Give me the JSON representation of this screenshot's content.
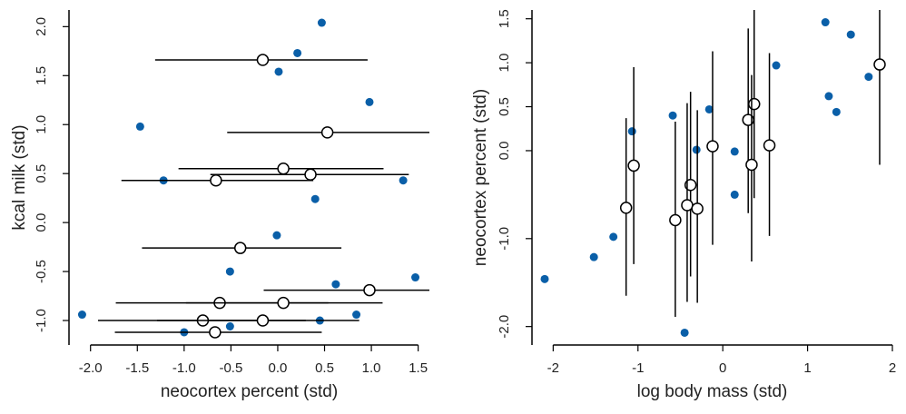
{
  "colors": {
    "observed": "#0a5fa8",
    "estimate": "#000000"
  },
  "chart_data": [
    {
      "type": "scatter",
      "xlabel": "neocortex percent (std)",
      "ylabel": "kcal milk (std)",
      "xlim": [
        -2.23,
        1.62
      ],
      "ylim": [
        -1.25,
        2.17
      ],
      "xticks": [
        "-2.0",
        "-1.5",
        "-1.0",
        "-0.5",
        "0.0",
        "0.5",
        "1.0",
        "1.5"
      ],
      "yticks": [
        "-1.0",
        "-0.5",
        "0.0",
        "0.5",
        "1.0",
        "1.5",
        "2.0"
      ],
      "grid": false,
      "observed": [
        [
          0.47,
          2.04
        ],
        [
          0.21,
          1.73
        ],
        [
          0.01,
          1.54
        ],
        [
          0.98,
          1.23
        ],
        [
          -1.47,
          0.98
        ],
        [
          -1.22,
          0.43
        ],
        [
          1.34,
          0.43
        ],
        [
          0.4,
          0.24
        ],
        [
          -0.01,
          -0.13
        ],
        [
          -0.51,
          -0.5
        ],
        [
          1.47,
          -0.56
        ],
        [
          0.62,
          -0.63
        ],
        [
          -2.09,
          -0.94
        ],
        [
          0.84,
          -0.94
        ],
        [
          0.45,
          -1.0
        ],
        [
          -0.51,
          -1.06
        ],
        [
          -1.0,
          -1.12
        ]
      ],
      "imputed": [
        {
          "x": -0.16,
          "y": 1.66,
          "lo": -1.31,
          "hi": 0.96
        },
        {
          "x": 0.53,
          "y": 0.92,
          "lo": -0.54,
          "hi": 1.62
        },
        {
          "x": 0.06,
          "y": 0.55,
          "lo": -1.06,
          "hi": 1.13
        },
        {
          "x": 0.35,
          "y": 0.49,
          "lo": -0.72,
          "hi": 1.4
        },
        {
          "x": -0.66,
          "y": 0.43,
          "lo": -1.67,
          "hi": 0.38
        },
        {
          "x": -0.4,
          "y": -0.26,
          "lo": -1.45,
          "hi": 0.68
        },
        {
          "x": 0.98,
          "y": -0.69,
          "lo": -0.15,
          "hi": 1.62
        },
        {
          "x": -0.62,
          "y": -0.82,
          "lo": -1.73,
          "hi": 0.54
        },
        {
          "x": 0.06,
          "y": -0.82,
          "lo": -0.98,
          "hi": 1.12
        },
        {
          "x": -0.8,
          "y": -1.0,
          "lo": -1.92,
          "hi": 0.3
        },
        {
          "x": -0.16,
          "y": -1.0,
          "lo": -1.29,
          "hi": 0.87
        },
        {
          "x": -0.67,
          "y": -1.12,
          "lo": -1.74,
          "hi": 0.47
        }
      ]
    },
    {
      "type": "scatter",
      "xlabel": "log body mass (std)",
      "ylabel": "neocortex percent (std)",
      "xlim": [
        -2.25,
        2.0
      ],
      "ylim": [
        -2.21,
        1.6
      ],
      "xticks": [
        "-2",
        "-1",
        "0",
        "1",
        "2"
      ],
      "yticks": [
        "-2.0",
        "-1.0",
        "0.0",
        "0.5",
        "1.0",
        "1.5"
      ],
      "grid": false,
      "observed": [
        [
          1.21,
          1.46
        ],
        [
          1.51,
          1.32
        ],
        [
          0.63,
          0.97
        ],
        [
          1.72,
          0.84
        ],
        [
          1.25,
          0.62
        ],
        [
          1.34,
          0.44
        ],
        [
          -0.16,
          0.47
        ],
        [
          -0.59,
          0.4
        ],
        [
          -1.07,
          0.22
        ],
        [
          -0.31,
          0.01
        ],
        [
          0.14,
          -0.01
        ],
        [
          0.14,
          -0.5
        ],
        [
          -1.29,
          -0.98
        ],
        [
          -1.52,
          -1.21
        ],
        [
          -2.1,
          -1.46
        ],
        [
          -0.45,
          -2.07
        ]
      ],
      "imputed": [
        {
          "x": -1.05,
          "y": -0.17,
          "lo": -1.29,
          "hi": 0.95
        },
        {
          "x": -1.14,
          "y": -0.65,
          "lo": -1.65,
          "hi": 0.37
        },
        {
          "x": -0.38,
          "y": -0.39,
          "lo": -1.43,
          "hi": 0.67
        },
        {
          "x": -0.42,
          "y": -0.62,
          "lo": -1.72,
          "hi": 0.54
        },
        {
          "x": -0.3,
          "y": -0.66,
          "lo": -1.73,
          "hi": 0.46
        },
        {
          "x": -0.56,
          "y": -0.79,
          "lo": -1.89,
          "hi": 0.33
        },
        {
          "x": -0.12,
          "y": 0.05,
          "lo": -1.07,
          "hi": 1.13
        },
        {
          "x": 0.3,
          "y": 0.35,
          "lo": -0.71,
          "hi": 1.39
        },
        {
          "x": 0.37,
          "y": 0.53,
          "lo": -0.54,
          "hi": 1.6
        },
        {
          "x": 0.34,
          "y": -0.16,
          "lo": -1.26,
          "hi": 0.86
        },
        {
          "x": 0.55,
          "y": 0.06,
          "lo": -0.97,
          "hi": 1.11
        },
        {
          "x": 1.85,
          "y": 0.98,
          "lo": -0.16,
          "hi": 1.6
        }
      ]
    }
  ]
}
